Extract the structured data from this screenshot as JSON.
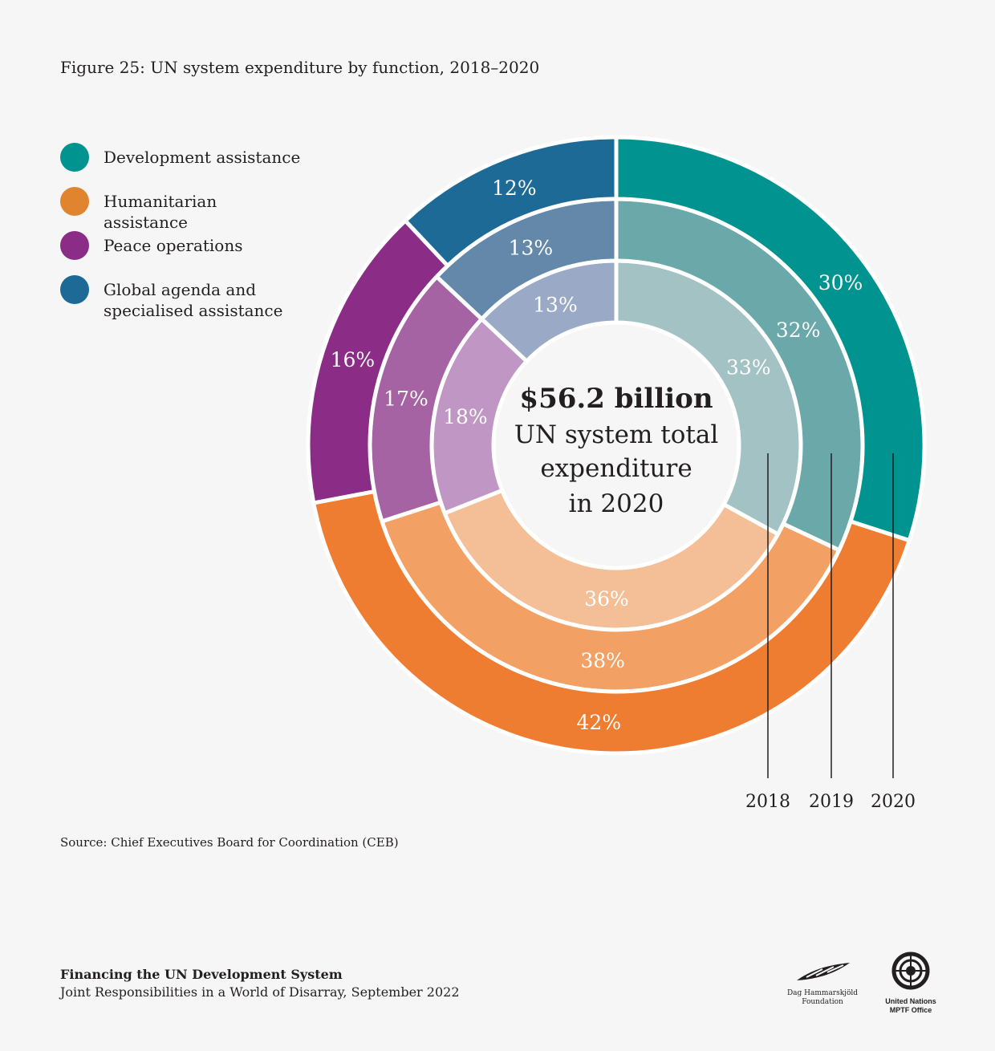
{
  "title": "Figure 25: UN system expenditure by function, 2018–2020",
  "legend": [
    {
      "label": "Development assistance",
      "color": "#00938f"
    },
    {
      "label": "Humanitarian assistance",
      "color": "#e08430"
    },
    {
      "label": "Peace operations",
      "color": "#8b2c86"
    },
    {
      "label": "Global agenda and specialised assistance",
      "color": "#1d6a96"
    }
  ],
  "chart_data": {
    "type": "pie",
    "subtype": "nested-donut",
    "title": "Figure 25: UN system expenditure by function, 2018–2020",
    "categories": [
      "Development assistance",
      "Humanitarian assistance",
      "Peace operations",
      "Global agenda and specialised assistance"
    ],
    "series": [
      {
        "name": "2018",
        "values": [
          33,
          36,
          18,
          13
        ],
        "colors": [
          "#a2c2c4",
          "#f4be96",
          "#c097c4",
          "#9aaac6"
        ]
      },
      {
        "name": "2019",
        "values": [
          32,
          38,
          17,
          13
        ],
        "colors": [
          "#6ba8aa",
          "#f2a064",
          "#a563a4",
          "#6388aa"
        ]
      },
      {
        "name": "2020",
        "values": [
          30,
          42,
          16,
          12
        ],
        "colors": [
          "#00938f",
          "#ef7d31",
          "#8b2c86",
          "#1d6a96"
        ]
      }
    ],
    "center_text": {
      "amount": "$56.2 billion",
      "line1": "UN system total",
      "line2": "expenditure",
      "line3": "in 2020"
    }
  },
  "source": "Source: Chief Executives Board for Coordination (CEB)",
  "footer": {
    "title": "Financing the UN Development System",
    "subtitle": "Joint Responsibilities in a World of Disarray, September 2022"
  },
  "logos": {
    "dhf": "Dag Hammarskjöld Foundation",
    "un1": "United Nations",
    "un2": "MPTF Office"
  }
}
